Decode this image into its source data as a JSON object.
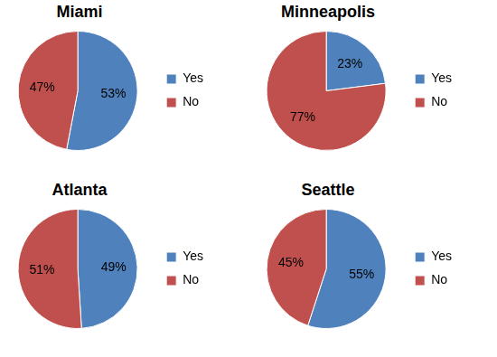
{
  "chart_data": [
    {
      "type": "pie",
      "title": "Miami",
      "categories": [
        "Yes",
        "No"
      ],
      "values": [
        53,
        47
      ],
      "value_labels": [
        "53%",
        "47%"
      ],
      "colors": [
        "#4f81bd",
        "#c0504d"
      ],
      "legend": "right",
      "data_labels": true
    },
    {
      "type": "pie",
      "title": "Minneapolis",
      "categories": [
        "Yes",
        "No"
      ],
      "values": [
        23,
        77
      ],
      "value_labels": [
        "23%",
        "77%"
      ],
      "colors": [
        "#4f81bd",
        "#c0504d"
      ],
      "legend": "right",
      "data_labels": true
    },
    {
      "type": "pie",
      "title": "Atlanta",
      "categories": [
        "Yes",
        "No"
      ],
      "values": [
        49,
        51
      ],
      "value_labels": [
        "49%",
        "51%"
      ],
      "colors": [
        "#4f81bd",
        "#c0504d"
      ],
      "legend": "right",
      "data_labels": true
    },
    {
      "type": "pie",
      "title": "Seattle",
      "categories": [
        "Yes",
        "No"
      ],
      "values": [
        55,
        45
      ],
      "value_labels": [
        "55%",
        "45%"
      ],
      "colors": [
        "#4f81bd",
        "#c0504d"
      ],
      "legend": "right",
      "data_labels": true
    }
  ]
}
